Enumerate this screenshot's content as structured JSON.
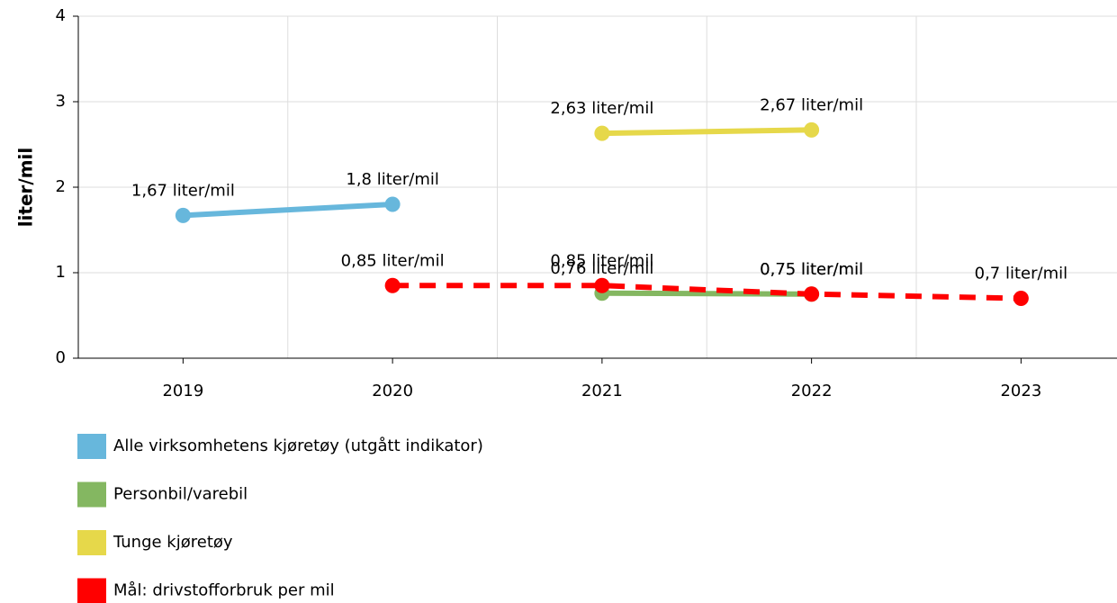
{
  "chart_data": {
    "type": "line",
    "y_label": "liter/mil",
    "categories": [
      "2019",
      "2020",
      "2021",
      "2022",
      "2023"
    ],
    "ylim": [
      0,
      4
    ],
    "yticks": [
      0,
      1,
      2,
      3,
      4
    ],
    "grid": true,
    "series": [
      {
        "name": "Alle virksomhetens kjøretøy (utgått indikator)",
        "color": "#67b7dc",
        "dashed": false,
        "values": [
          1.67,
          1.8,
          null,
          null,
          null
        ],
        "value_labels": [
          "1,67 liter/mil",
          "1,8 liter/mil",
          null,
          null,
          null
        ]
      },
      {
        "name": "Personbil/varebil",
        "color": "#84b761",
        "dashed": false,
        "values": [
          null,
          null,
          0.76,
          0.75,
          null
        ],
        "value_labels": [
          null,
          null,
          "0,76 liter/mil",
          "0,75 liter/mil",
          null
        ]
      },
      {
        "name": "Tunge kjøretøy",
        "color": "#e6d84a",
        "dashed": false,
        "values": [
          null,
          null,
          2.63,
          2.67,
          null
        ],
        "value_labels": [
          null,
          null,
          "2,63 liter/mil",
          "2,67 liter/mil",
          null
        ]
      },
      {
        "name": "Mål: drivstofforbruk per mil",
        "color": "#ff0000",
        "dashed": true,
        "values": [
          null,
          0.85,
          0.85,
          0.75,
          0.7
        ],
        "value_labels": [
          null,
          "0,85 liter/mil",
          "0,85 liter/mil",
          "0,75 liter/mil",
          "0,7 liter/mil"
        ]
      }
    ]
  }
}
